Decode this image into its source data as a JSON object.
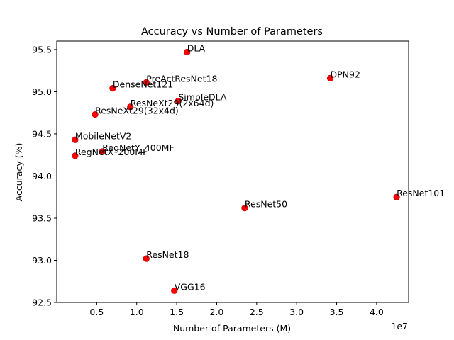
{
  "chart_data": {
    "type": "scatter",
    "title": "Accuracy vs Number of Parameters",
    "xlabel": "Number of Parameters (M)",
    "ylabel": "Accuracy (%)",
    "x_offset_label": "1e7",
    "xlim": [
      0.0,
      44000000.0
    ],
    "ylim": [
      92.5,
      95.6
    ],
    "xticks": [
      5000000,
      10000000,
      15000000,
      20000000,
      25000000,
      30000000,
      35000000,
      40000000
    ],
    "xtick_labels": [
      "0.5",
      "1.0",
      "1.5",
      "2.0",
      "2.5",
      "3.0",
      "3.5",
      "4.0"
    ],
    "yticks": [
      92.5,
      93.0,
      93.5,
      94.0,
      94.5,
      95.0,
      95.5
    ],
    "ytick_labels": [
      "92.5",
      "93.0",
      "93.5",
      "94.0",
      "94.5",
      "95.0",
      "95.5"
    ],
    "grid": false,
    "marker_color": "#ff0000",
    "marker_edge_color": "#b00000",
    "points": [
      {
        "label": "DLA",
        "x": 16300000,
        "y": 95.47
      },
      {
        "label": "DPN92",
        "x": 34200000,
        "y": 95.16
      },
      {
        "label": "PreActResNet18",
        "x": 11200000,
        "y": 95.11
      },
      {
        "label": "DenseNet121",
        "x": 7000000,
        "y": 95.04
      },
      {
        "label": "SimpleDLA",
        "x": 15200000,
        "y": 94.89
      },
      {
        "label": "ResNeXt29(2x64d)",
        "x": 9200000,
        "y": 94.82
      },
      {
        "label": "ResNeXt29(32x4d)",
        "x": 4800000,
        "y": 94.73
      },
      {
        "label": "MobileNetV2",
        "x": 2300000,
        "y": 94.43
      },
      {
        "label": "RegNetY_400MF",
        "x": 5700000,
        "y": 94.29
      },
      {
        "label": "RegNetX_200MF",
        "x": 2300000,
        "y": 94.24
      },
      {
        "label": "ResNet101",
        "x": 42500000,
        "y": 93.75
      },
      {
        "label": "ResNet50",
        "x": 23500000,
        "y": 93.62
      },
      {
        "label": "ResNet18",
        "x": 11200000,
        "y": 93.02
      },
      {
        "label": "VGG16",
        "x": 14700000,
        "y": 92.64
      }
    ]
  }
}
